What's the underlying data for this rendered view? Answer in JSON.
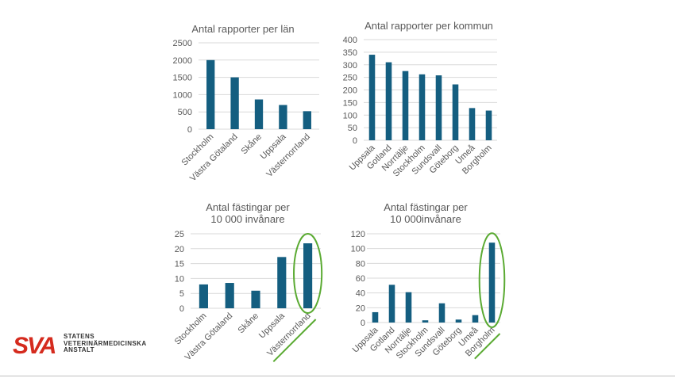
{
  "logo": {
    "mark": "SVA",
    "lines": [
      "STATENS",
      "VETERINÄRMEDICINSKA",
      "ANSTALT"
    ]
  },
  "colors": {
    "bar": "#145e80",
    "highlight": "#5aaa32",
    "grid": "#d9d9d9",
    "text": "#595959",
    "logo_red": "#d52b1e"
  },
  "chart_data": [
    {
      "type": "bar",
      "title": [
        "Antal rapporter per län"
      ],
      "categories": [
        "Stockholm",
        "Västra Götaland",
        "Skåne",
        "Uppsala",
        "Västernorrland"
      ],
      "values": [
        2000,
        1500,
        860,
        700,
        520
      ],
      "ylim": [
        0,
        2500
      ],
      "yticks": [
        0,
        500,
        1000,
        1500,
        2000,
        2500
      ],
      "grid": true,
      "highlight": null
    },
    {
      "type": "bar",
      "title": [
        "Antal rapporter per kommun"
      ],
      "categories": [
        "Uppsala",
        "Gotland",
        "Norrtälje",
        "Stockholm",
        "Sundsvall",
        "Göteborg",
        "Umeå",
        "Borgholm"
      ],
      "values": [
        340,
        310,
        275,
        262,
        258,
        222,
        128,
        118
      ],
      "ylim": [
        0,
        400
      ],
      "yticks": [
        0,
        50,
        100,
        150,
        200,
        250,
        300,
        350,
        400
      ],
      "grid": true,
      "highlight": null
    },
    {
      "type": "bar",
      "title": [
        "Antal fästingar per",
        "10 000 invånare"
      ],
      "categories": [
        "Stockholm",
        "Västra Götaland",
        "Skåne",
        "Uppsala",
        "Västernorrland"
      ],
      "values": [
        8,
        8.5,
        5.9,
        17.2,
        21.8
      ],
      "ylim": [
        0,
        25
      ],
      "yticks": [
        0,
        5,
        10,
        15,
        20,
        25
      ],
      "grid": true,
      "highlight": "Västernorrland"
    },
    {
      "type": "bar",
      "title": [
        "Antal fästingar per",
        "10 000invånare"
      ],
      "categories": [
        "Uppsala",
        "Gotland",
        "Norrtälje",
        "Stockholm",
        "Sundsvall",
        "Göteborg",
        "Umeå",
        "Borgholm"
      ],
      "values": [
        14,
        51,
        41,
        3,
        26,
        4,
        10,
        108
      ],
      "ylim": [
        0,
        120
      ],
      "yticks": [
        0,
        20,
        40,
        60,
        80,
        100,
        120
      ],
      "grid": true,
      "highlight": "Borgholm"
    }
  ]
}
